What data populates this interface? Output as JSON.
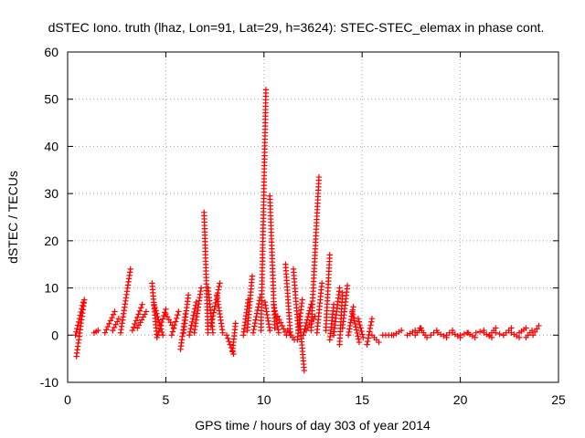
{
  "chart_data": {
    "type": "scatter",
    "title": "dSTEC Iono. truth (lhaz, Lon=91, Lat=29, h=3624): STEC-STEC_elemax in phase cont.",
    "xlabel": "GPS time / hours of day 303 of year 2014",
    "ylabel": "dSTEC  / TECUs",
    "xlim": [
      0,
      25
    ],
    "ylim": [
      -10,
      60
    ],
    "xticks": [
      "0",
      "5",
      "10",
      "15",
      "20",
      "25"
    ],
    "yticks": [
      "-10",
      "0",
      "10",
      "20",
      "30",
      "40",
      "50",
      "60"
    ],
    "grid": true,
    "marker": "plus",
    "colors": {
      "series": "#ff0000",
      "grid": "#a0a0a0",
      "axis": "#000000"
    },
    "series": [
      {
        "arcs": [
          {
            "start": [
              0.45,
              -4.5
            ],
            "end": [
              0.85,
              7.5
            ]
          },
          {
            "start": [
              0.4,
              0.0
            ],
            "end": [
              0.8,
              7.0
            ]
          },
          {
            "start": [
              1.35,
              0.5
            ],
            "end": [
              1.55,
              1.0
            ]
          },
          {
            "start": [
              1.9,
              0.5
            ],
            "end": [
              2.4,
              5.0
            ]
          },
          {
            "start": [
              2.3,
              1.0
            ],
            "end": [
              2.6,
              3.5
            ]
          },
          {
            "start": [
              2.7,
              0.5
            ],
            "end": [
              3.2,
              14.0
            ]
          },
          {
            "start": [
              3.3,
              1.0
            ],
            "end": [
              3.8,
              6.5
            ]
          },
          {
            "start": [
              3.55,
              1.5
            ],
            "end": [
              4.0,
              5.0
            ]
          },
          {
            "start": [
              4.3,
              11.0
            ],
            "end": [
              4.55,
              -0.5
            ]
          },
          {
            "start": [
              4.4,
              6.5
            ],
            "end": [
              4.85,
              0.0
            ]
          },
          {
            "start": [
              4.6,
              0.0
            ],
            "end": [
              5.0,
              5.5
            ]
          },
          {
            "start": [
              5.0,
              4.5
            ],
            "end": [
              5.4,
              1.5
            ]
          },
          {
            "start": [
              5.3,
              0.0
            ],
            "end": [
              5.65,
              5.0
            ]
          },
          {
            "start": [
              5.75,
              -3.0
            ],
            "end": [
              6.0,
              4.5
            ]
          },
          {
            "start": [
              5.9,
              0.5
            ],
            "end": [
              6.15,
              8.5
            ]
          },
          {
            "start": [
              6.2,
              0.0
            ],
            "end": [
              6.55,
              7.0
            ]
          },
          {
            "start": [
              6.45,
              0.5
            ],
            "end": [
              6.8,
              10.0
            ]
          },
          {
            "start": [
              6.95,
              26.0
            ],
            "end": [
              7.15,
              0.5
            ]
          },
          {
            "start": [
              7.15,
              10.0
            ],
            "end": [
              7.4,
              0.5
            ]
          },
          {
            "start": [
              7.3,
              2.0
            ],
            "end": [
              7.75,
              11.0
            ]
          },
          {
            "start": [
              7.6,
              8.5
            ],
            "end": [
              7.9,
              0.5
            ]
          },
          {
            "start": [
              8.1,
              0.0
            ],
            "end": [
              8.45,
              -4.0
            ]
          },
          {
            "start": [
              8.4,
              -3.5
            ],
            "end": [
              8.55,
              2.5
            ]
          },
          {
            "start": [
              8.95,
              0.0
            ],
            "end": [
              9.2,
              7.5
            ]
          },
          {
            "start": [
              9.15,
              1.0
            ],
            "end": [
              9.4,
              12.5
            ]
          },
          {
            "start": [
              9.45,
              0.5
            ],
            "end": [
              9.8,
              8.0
            ]
          },
          {
            "start": [
              9.85,
              1.0
            ],
            "end": [
              10.1,
              52.0
            ]
          },
          {
            "start": [
              10.05,
              7.0
            ],
            "end": [
              10.3,
              1.0
            ]
          },
          {
            "start": [
              10.3,
              29.5
            ],
            "end": [
              10.55,
              1.5
            ]
          },
          {
            "start": [
              10.5,
              6.5
            ],
            "end": [
              10.75,
              0.5
            ]
          },
          {
            "start": [
              10.7,
              4.0
            ],
            "end": [
              11.15,
              0.0
            ]
          },
          {
            "start": [
              11.1,
              15.0
            ],
            "end": [
              11.35,
              0.0
            ]
          },
          {
            "start": [
              11.2,
              1.0
            ],
            "end": [
              11.55,
              -1.0
            ]
          },
          {
            "start": [
              11.5,
              14.0
            ],
            "end": [
              11.75,
              1.0
            ]
          },
          {
            "start": [
              11.7,
              -1.0
            ],
            "end": [
              11.95,
              7.5
            ]
          },
          {
            "start": [
              11.8,
              4.0
            ],
            "end": [
              12.05,
              -7.5
            ]
          },
          {
            "start": [
              12.0,
              0.0
            ],
            "end": [
              12.4,
              6.5
            ]
          },
          {
            "start": [
              12.15,
              1.0
            ],
            "end": [
              12.6,
              4.0
            ]
          },
          {
            "start": [
              12.4,
              1.0
            ],
            "end": [
              12.8,
              33.5
            ]
          },
          {
            "start": [
              12.7,
              0.5
            ],
            "end": [
              12.95,
              11.0
            ]
          },
          {
            "start": [
              13.15,
              1.0
            ],
            "end": [
              13.35,
              17.0
            ]
          },
          {
            "start": [
              13.35,
              -1.0
            ],
            "end": [
              13.55,
              6.5
            ]
          },
          {
            "start": [
              13.55,
              0.0
            ],
            "end": [
              13.85,
              10.0
            ]
          },
          {
            "start": [
              13.85,
              -2.0
            ],
            "end": [
              14.0,
              9.0
            ]
          },
          {
            "start": [
              14.0,
              1.5
            ],
            "end": [
              14.25,
              10.5
            ]
          },
          {
            "start": [
              14.3,
              0.0
            ],
            "end": [
              14.55,
              6.0
            ]
          },
          {
            "start": [
              14.5,
              5.0
            ],
            "end": [
              14.85,
              -1.5
            ]
          },
          {
            "start": [
              14.8,
              3.5
            ],
            "end": [
              15.05,
              -0.5
            ]
          },
          {
            "start": [
              15.25,
              -2.0
            ],
            "end": [
              15.5,
              3.5
            ]
          },
          {
            "start": [
              15.5,
              0.0
            ],
            "end": [
              15.85,
              -1.5
            ]
          },
          {
            "start": [
              16.05,
              0.0
            ],
            "end": [
              16.5,
              0.0
            ]
          },
          {
            "start": [
              16.6,
              0.0
            ],
            "end": [
              17.0,
              1.0
            ]
          },
          {
            "start": [
              17.3,
              0.0
            ],
            "end": [
              17.7,
              1.0
            ]
          },
          {
            "start": [
              17.7,
              0.0
            ],
            "end": [
              18.0,
              1.5
            ]
          },
          {
            "start": [
              17.95,
              1.5
            ],
            "end": [
              18.3,
              -0.5
            ]
          },
          {
            "start": [
              18.5,
              0.0
            ],
            "end": [
              18.8,
              1.0
            ]
          },
          {
            "start": [
              18.85,
              0.5
            ],
            "end": [
              19.3,
              -0.5
            ]
          },
          {
            "start": [
              19.3,
              0.0
            ],
            "end": [
              19.6,
              1.0
            ]
          },
          {
            "start": [
              19.6,
              0.5
            ],
            "end": [
              20.0,
              -0.5
            ]
          },
          {
            "start": [
              20.0,
              0.0
            ],
            "end": [
              20.4,
              0.5
            ]
          },
          {
            "start": [
              20.35,
              0.5
            ],
            "end": [
              20.75,
              -0.5
            ]
          },
          {
            "start": [
              20.8,
              0.5
            ],
            "end": [
              21.2,
              1.0
            ]
          },
          {
            "start": [
              21.2,
              0.5
            ],
            "end": [
              21.6,
              -0.5
            ]
          },
          {
            "start": [
              21.5,
              0.0
            ],
            "end": [
              21.8,
              1.5
            ]
          },
          {
            "start": [
              21.8,
              0.5
            ],
            "end": [
              22.2,
              0.0
            ]
          },
          {
            "start": [
              22.2,
              0.0
            ],
            "end": [
              22.6,
              1.5
            ]
          },
          {
            "start": [
              22.6,
              0.5
            ],
            "end": [
              23.0,
              -0.5
            ]
          },
          {
            "start": [
              23.0,
              0.5
            ],
            "end": [
              23.35,
              1.5
            ]
          },
          {
            "start": [
              23.35,
              -0.5
            ],
            "end": [
              23.65,
              1.0
            ]
          },
          {
            "start": [
              23.7,
              0.0
            ],
            "end": [
              24.0,
              2.0
            ]
          }
        ]
      }
    ]
  }
}
